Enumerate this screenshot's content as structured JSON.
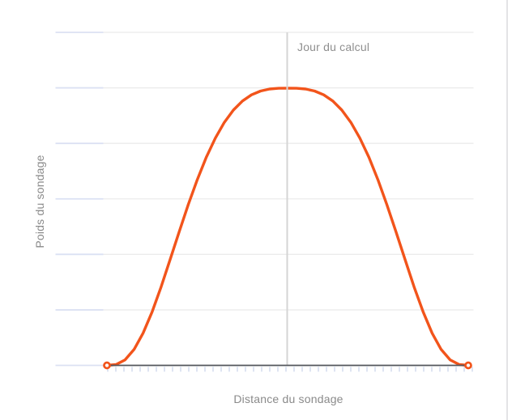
{
  "chart": {
    "annotation_label": "Jour du calcul",
    "x_axis_label": "Distance du sondage",
    "y_axis_label": "Poids du sondage"
  },
  "colors": {
    "curve": "#f2541b",
    "grid": "#ebebeb",
    "grid_accent": "#dbe1f3",
    "axis": "#53565c",
    "tick": "#c8d1e8",
    "reference_line": "#d5d5d5",
    "label_text": "#8a8a8a",
    "divider": "#e4e4e6",
    "background": "#ffffff"
  },
  "chart_data": {
    "type": "line",
    "title": "",
    "xlabel": "Distance du sondage",
    "ylabel": "Poids du sondage",
    "kernel": "tricube",
    "x_range_normalized": [
      -1,
      1
    ],
    "ylim": [
      0,
      1
    ],
    "grid": "horizontal",
    "y_gridline_count": 7,
    "axis_tick_count": 46,
    "endpoint_markers": "open-circle",
    "legend": "none",
    "reference_line": {
      "x": 0,
      "label": "Jour du calcul",
      "orientation": "vertical"
    },
    "series": [
      {
        "name": "Poids du sondage",
        "color": "#f2541b",
        "points": [
          [
            -1,
            0
          ],
          [
            -0.95,
            0.0029
          ],
          [
            -0.9,
            0.0199
          ],
          [
            -0.85,
            0.0574
          ],
          [
            -0.8,
            0.1162
          ],
          [
            -0.75,
            0.1932
          ],
          [
            -0.7,
            0.2836
          ],
          [
            -0.65,
            0.3818
          ],
          [
            -0.6,
            0.4819
          ],
          [
            -0.55,
            0.5793
          ],
          [
            -0.5,
            0.6699
          ],
          [
            -0.45,
            0.7507
          ],
          [
            -0.4,
            0.82
          ],
          [
            -0.35,
            0.8769
          ],
          [
            -0.3,
            0.9212
          ],
          [
            -0.25,
            0.9539
          ],
          [
            -0.2,
            0.9762
          ],
          [
            -0.15,
            0.9899
          ],
          [
            -0.1,
            0.997
          ],
          [
            -0.05,
            0.9996
          ],
          [
            0,
            1
          ],
          [
            0.05,
            0.9996
          ],
          [
            0.1,
            0.997
          ],
          [
            0.15,
            0.9899
          ],
          [
            0.2,
            0.9762
          ],
          [
            0.25,
            0.9539
          ],
          [
            0.3,
            0.9212
          ],
          [
            0.35,
            0.8769
          ],
          [
            0.4,
            0.82
          ],
          [
            0.45,
            0.7507
          ],
          [
            0.5,
            0.6699
          ],
          [
            0.55,
            0.5793
          ],
          [
            0.6,
            0.4819
          ],
          [
            0.65,
            0.3818
          ],
          [
            0.7,
            0.2836
          ],
          [
            0.75,
            0.1932
          ],
          [
            0.8,
            0.1162
          ],
          [
            0.85,
            0.0574
          ],
          [
            0.9,
            0.0199
          ],
          [
            0.95,
            0.0029
          ],
          [
            1,
            0
          ]
        ]
      }
    ]
  }
}
